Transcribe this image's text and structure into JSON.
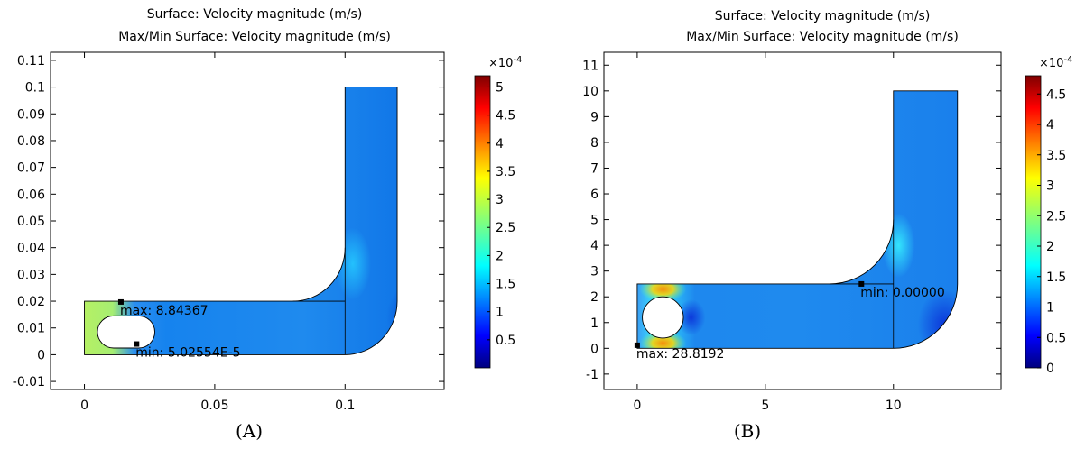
{
  "chart_data": [
    {
      "type": "heatmap",
      "panel_label": "(A)",
      "title_lines": [
        "Surface: Velocity magnitude (m/s)",
        "Max/Min Surface: Velocity magnitude (m/s)"
      ],
      "xlim": [
        -0.013,
        0.138
      ],
      "ylim": [
        -0.013,
        0.113
      ],
      "x_ticks": [
        0,
        0.05,
        0.1
      ],
      "x_tick_labels": [
        "0",
        "0.05",
        "0.1"
      ],
      "y_ticks": [
        -0.01,
        0,
        0.01,
        0.02,
        0.03,
        0.04,
        0.05,
        0.06,
        0.07,
        0.08,
        0.09,
        0.1,
        0.11
      ],
      "y_tick_labels": [
        "-0.01",
        "0",
        "0.01",
        "0.02",
        "0.03",
        "0.04",
        "0.05",
        "0.06",
        "0.07",
        "0.08",
        "0.09",
        "0.1",
        "0.11"
      ],
      "geometry": {
        "channel_x": [
          0,
          0.1
        ],
        "channel_y": [
          0,
          0.02
        ],
        "riser_x": [
          0.1,
          0.12
        ],
        "riser_y": [
          0,
          0.1
        ],
        "outer_bend_radius": 0.02,
        "inner_fillet_radius": 0.02,
        "obstacle": {
          "shape": "stadium",
          "x": [
            0.005,
            0.027
          ],
          "y": [
            0.0025,
            0.0145
          ]
        }
      },
      "annotations": [
        {
          "label": "max: 8.84367",
          "x": 0.014,
          "y": 0.0197
        },
        {
          "label": "min: 5.02554E-5",
          "x": 0.02,
          "y": 0.004
        }
      ],
      "colorbar": {
        "multiplier": "×10",
        "exponent": "-4",
        "range": [
          0.0,
          5.2
        ],
        "ticks": [
          0.5,
          1,
          1.5,
          2,
          2.5,
          3,
          3.5,
          4,
          4.5,
          5
        ],
        "tick_labels": [
          "0.5",
          "1",
          "1.5",
          "2",
          "2.5",
          "3",
          "3.5",
          "4",
          "4.5",
          "5"
        ]
      }
    },
    {
      "type": "heatmap",
      "panel_label": "(B)",
      "title_lines": [
        "Surface: Velocity magnitude (m/s)",
        "Max/Min Surface: Velocity magnitude (m/s)"
      ],
      "xlim": [
        -1.3,
        14.2
      ],
      "ylim": [
        -1.6,
        11.5
      ],
      "x_ticks": [
        0,
        5,
        10
      ],
      "x_tick_labels": [
        "0",
        "5",
        "10"
      ],
      "y_ticks": [
        -1,
        0,
        1,
        2,
        3,
        4,
        5,
        6,
        7,
        8,
        9,
        10,
        11
      ],
      "y_tick_labels": [
        "-1",
        "0",
        "1",
        "2",
        "3",
        "4",
        "5",
        "6",
        "7",
        "8",
        "9",
        "10",
        "11"
      ],
      "geometry": {
        "channel_x": [
          0,
          10
        ],
        "channel_y": [
          0,
          2.5
        ],
        "riser_x": [
          10,
          12.5
        ],
        "riser_y": [
          0,
          10
        ],
        "outer_bend_radius": 2.5,
        "inner_fillet_radius": 2.5,
        "obstacle": {
          "shape": "circle",
          "cx": 1.0,
          "cy": 1.2,
          "r": 0.8
        }
      },
      "annotations": [
        {
          "label": "min: 0.00000",
          "x": 8.75,
          "y": 2.5
        },
        {
          "label": "max: 28.8192",
          "x": 0.0,
          "y": 0.12
        }
      ],
      "colorbar": {
        "multiplier": "×10",
        "exponent": "-4",
        "range": [
          0.0,
          4.8
        ],
        "ticks": [
          0,
          0.5,
          1,
          1.5,
          2,
          2.5,
          3,
          3.5,
          4,
          4.5
        ],
        "tick_labels": [
          "0",
          "0.5",
          "1",
          "1.5",
          "2",
          "2.5",
          "3",
          "3.5",
          "4",
          "4.5"
        ]
      }
    }
  ]
}
